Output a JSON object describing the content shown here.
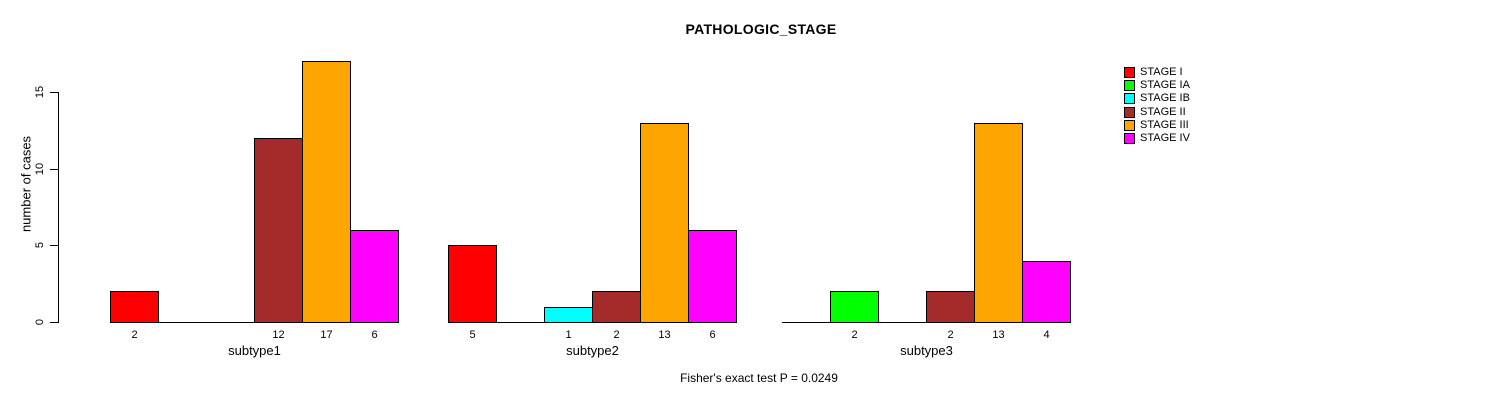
{
  "title": "PATHOLOGIC_STAGE",
  "caption": "Fisher's exact test P = 0.0249",
  "chart_data": {
    "type": "bar",
    "title": "PATHOLOGIC_STAGE",
    "xlabel": "",
    "ylabel": "number of cases",
    "ylim": [
      0,
      17
    ],
    "yticks": [
      0,
      5,
      10,
      15
    ],
    "grid": false,
    "legend_position": "top-right",
    "annotation": "Fisher's exact test P = 0.0249",
    "stages": [
      {
        "name": "STAGE I",
        "color": "#FF0000"
      },
      {
        "name": "STAGE IA",
        "color": "#00FF00"
      },
      {
        "name": "STAGE IB",
        "color": "#00FFFF"
      },
      {
        "name": "STAGE II",
        "color": "#A52A2A"
      },
      {
        "name": "STAGE III",
        "color": "#FFA500"
      },
      {
        "name": "STAGE IV",
        "color": "#FF00FF"
      }
    ],
    "groups": [
      {
        "label": "subtype1",
        "values": [
          2,
          0,
          0,
          12,
          17,
          6
        ]
      },
      {
        "label": "subtype2",
        "values": [
          5,
          0,
          1,
          2,
          13,
          6
        ]
      },
      {
        "label": "subtype3",
        "values": [
          0,
          2,
          0,
          2,
          13,
          4
        ]
      }
    ],
    "bar_value_labels_shown": true
  }
}
